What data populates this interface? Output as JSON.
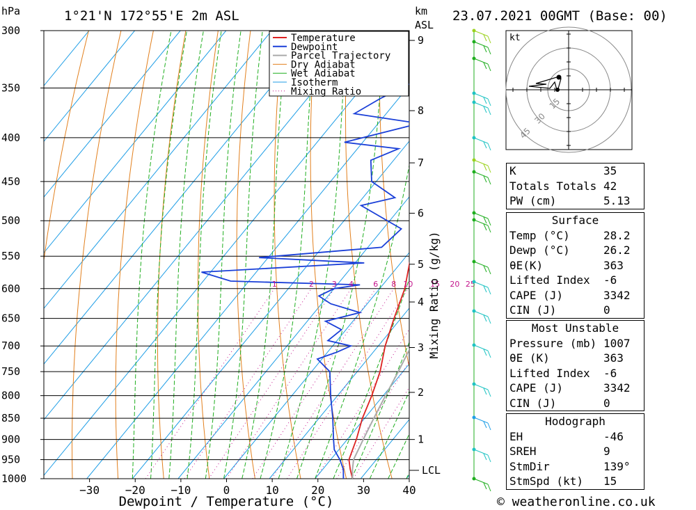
{
  "header": {
    "location": "1°21'N 172°55'E 2m ASL",
    "valid": "23.07.2021 00GMT (Base: 00)",
    "hpa_unit": "hPa",
    "km_unit": "km",
    "asl_unit": "ASL"
  },
  "chart_data": {
    "type": "line",
    "title": "1°21'N 172°55'E 2m ASL",
    "xlabel": "Dewpoint / Temperature (°C)",
    "ylabel": "hPa",
    "right_axis_label": "Mixing Ratio (g/kg)",
    "xlim": [
      -40,
      40
    ],
    "ylim": [
      1000,
      300
    ],
    "x_ticks": [
      "-30",
      "-20",
      "-10",
      "0",
      "10",
      "20",
      "30",
      "40"
    ],
    "pressure_levels": [
      "300",
      "350",
      "400",
      "450",
      "500",
      "550",
      "600",
      "650",
      "700",
      "750",
      "800",
      "850",
      "900",
      "950",
      "1000"
    ],
    "km_ticks": [
      "9",
      "8",
      "7",
      "6",
      "5",
      "4",
      "3",
      "2",
      "1"
    ],
    "lcl_label": "LCL",
    "mixing_ratio_labels": [
      "1",
      "2",
      "3",
      "4",
      "6",
      "8",
      "10",
      "15",
      "20",
      "25"
    ],
    "legend": [
      "Temperature",
      "Dewpoint",
      "Parcel Trajectory",
      "Dry Adiabat",
      "Wet Adiabat",
      "Isotherm",
      "Mixing Ratio"
    ],
    "series": [
      {
        "name": "Temperature",
        "color": "#dd2222",
        "points": [
          [
            1000,
            28.2
          ],
          [
            975,
            26
          ],
          [
            950,
            24
          ],
          [
            925,
            23
          ],
          [
            900,
            22
          ],
          [
            850,
            19.5
          ],
          [
            800,
            17.5
          ],
          [
            750,
            15
          ],
          [
            700,
            11.5
          ],
          [
            650,
            8.5
          ],
          [
            600,
            5.5
          ],
          [
            550,
            1
          ],
          [
            525,
            -2
          ],
          [
            500,
            -4.5
          ],
          [
            450,
            -10
          ],
          [
            400,
            -17
          ],
          [
            375,
            -21.5
          ],
          [
            350,
            -27
          ],
          [
            325,
            -33
          ],
          [
            300,
            -37.5
          ]
        ]
      },
      {
        "name": "Dewpoint",
        "color": "#1a3fd8",
        "points": [
          [
            1000,
            26.2
          ],
          [
            975,
            24.5
          ],
          [
            950,
            22
          ],
          [
            925,
            19
          ],
          [
            900,
            17
          ],
          [
            850,
            13
          ],
          [
            800,
            8.5
          ],
          [
            750,
            4
          ],
          [
            725,
            -1
          ],
          [
            712,
            2
          ],
          [
            700,
            4
          ],
          [
            690,
            -2
          ],
          [
            670,
            -1
          ],
          [
            655,
            -6
          ],
          [
            640,
            0
          ],
          [
            625,
            -8
          ],
          [
            612,
            -12
          ],
          [
            600,
            -10
          ],
          [
            594,
            -5
          ],
          [
            588,
            -34
          ],
          [
            574,
            -42
          ],
          [
            560,
            -8
          ],
          [
            552,
            -32
          ],
          [
            537,
            -7
          ],
          [
            511,
            -6
          ],
          [
            480,
            -19
          ],
          [
            470,
            -13
          ],
          [
            450,
            -21
          ],
          [
            425,
            -25
          ],
          [
            412,
            -21
          ],
          [
            405,
            -34
          ],
          [
            385,
            -21
          ],
          [
            375,
            -37
          ],
          [
            360,
            -34
          ],
          [
            325,
            -24
          ],
          [
            310,
            -14
          ],
          [
            300,
            -11
          ]
        ]
      },
      {
        "name": "Parcel Trajectory",
        "color": "#aaaaaa",
        "points": [
          [
            1000,
            28.2
          ],
          [
            975,
            26.5
          ],
          [
            950,
            25
          ],
          [
            900,
            23.5
          ],
          [
            850,
            22
          ],
          [
            800,
            20.5
          ],
          [
            750,
            19
          ],
          [
            700,
            17.2
          ],
          [
            650,
            15.2
          ],
          [
            600,
            13
          ],
          [
            550,
            10.2
          ],
          [
            500,
            7
          ],
          [
            450,
            3.5
          ],
          [
            400,
            -1.5
          ],
          [
            350,
            -8
          ],
          [
            300,
            -16
          ]
        ]
      }
    ],
    "indices": [
      {
        "label": "K",
        "value": "35"
      },
      {
        "label": "Totals Totals",
        "value": "42"
      },
      {
        "label": "PW (cm)",
        "value": "5.13"
      }
    ],
    "surface": {
      "title": "Surface",
      "rows": [
        {
          "label": "Temp (°C)",
          "value": "28.2"
        },
        {
          "label": "Dewp (°C)",
          "value": "26.2"
        },
        {
          "label": "θE(K)",
          "value": "363"
        },
        {
          "label": "Lifted Index",
          "value": "-6"
        },
        {
          "label": "CAPE (J)",
          "value": "3342"
        },
        {
          "label": "CIN (J)",
          "value": "0"
        }
      ]
    },
    "most_unstable": {
      "title": "Most Unstable",
      "rows": [
        {
          "label": "Pressure (mb)",
          "value": "1007"
        },
        {
          "label": "θE (K)",
          "value": "363"
        },
        {
          "label": "Lifted Index",
          "value": "-6"
        },
        {
          "label": "CAPE (J)",
          "value": "3342"
        },
        {
          "label": "CIN (J)",
          "value": "0"
        }
      ]
    },
    "hodograph": {
      "title": "Hodograph",
      "unit": "kt",
      "ring_labels": [
        "15",
        "30",
        "45"
      ],
      "rows": [
        {
          "label": "EH",
          "value": "-46"
        },
        {
          "label": "SREH",
          "value": "9"
        },
        {
          "label": "StmDir",
          "value": "139°"
        },
        {
          "label": "StmSpd (kt)",
          "value": "15"
        }
      ]
    }
  },
  "footer": {
    "copyright": "© weatheronline.co.uk"
  }
}
